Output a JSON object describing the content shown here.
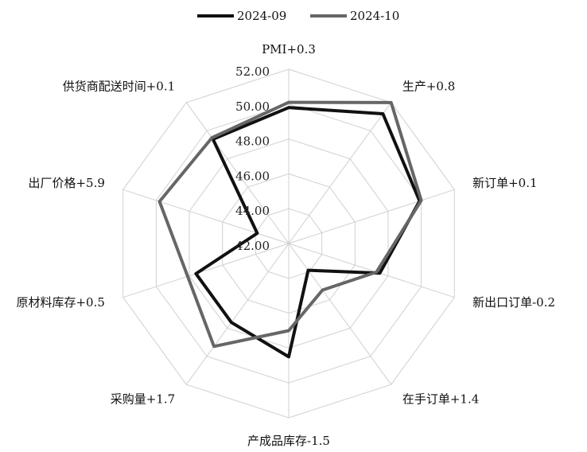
{
  "chart_data": {
    "type": "radar",
    "categories": [
      "PMI+0.3",
      "生产+0.8",
      "新订单+0.1",
      "新出口订单-0.2",
      "在手订单+1.4",
      "产成品库存-1.5",
      "采购量+1.7",
      "原材料库存+0.5",
      "出厂价格+5.9",
      "供货商配送时间+0.1"
    ],
    "series": [
      {
        "name": "2024-09",
        "color": "#111111",
        "values": [
          49.8,
          51.2,
          49.9,
          47.5,
          43.9,
          48.5,
          47.6,
          47.6,
          43.9,
          49.4
        ]
      },
      {
        "name": "2024-10",
        "color": "#666666",
        "values": [
          50.1,
          52.0,
          50.0,
          47.3,
          45.3,
          47.0,
          49.3,
          48.1,
          49.8,
          49.5
        ]
      }
    ],
    "ylim": [
      42,
      52
    ],
    "yticks": [
      {
        "value": 42,
        "label": "42.00"
      },
      {
        "value": 44,
        "label": "44.00"
      },
      {
        "value": 46,
        "label": "46.00"
      },
      {
        "value": 48,
        "label": "48.00"
      },
      {
        "value": 50,
        "label": "50.00"
      },
      {
        "value": 52,
        "label": "52.00"
      }
    ],
    "grid": true,
    "legend": "top"
  }
}
